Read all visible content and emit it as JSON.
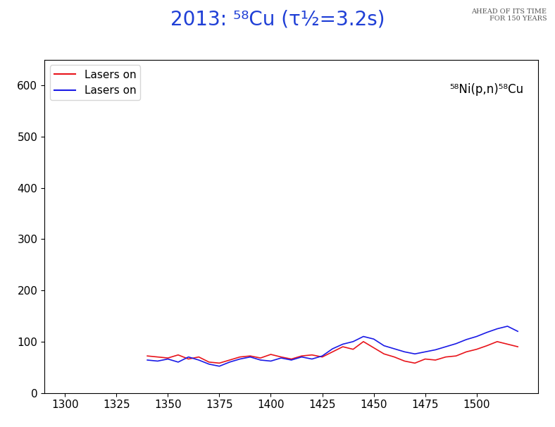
{
  "chart_data": {
    "type": "line",
    "title": "2013: ⁵⁸Cu (τ½=3.2s)",
    "banner": [
      "AHEAD OF ITS TIME",
      "FOR 150 YEARS"
    ],
    "annotations": [
      "⁵⁸Ni(p,n)⁵⁸Cu"
    ],
    "x": [
      1340,
      1345,
      1350,
      1355,
      1360,
      1365,
      1370,
      1375,
      1380,
      1385,
      1390,
      1395,
      1400,
      1405,
      1410,
      1415,
      1420,
      1425,
      1430,
      1435,
      1440,
      1445,
      1450,
      1455,
      1460,
      1465,
      1470,
      1475,
      1480,
      1485,
      1490,
      1495,
      1500,
      1505,
      1510,
      1515,
      1520
    ],
    "series": [
      {
        "name": "Lasers on",
        "color": "#e8141b",
        "line_style": "solid",
        "values": [
          72,
          70,
          68,
          74,
          66,
          70,
          60,
          58,
          64,
          70,
          72,
          68,
          75,
          70,
          66,
          72,
          74,
          70,
          80,
          90,
          85,
          100,
          88,
          76,
          70,
          62,
          58,
          66,
          64,
          70,
          72,
          80,
          85,
          92,
          100,
          95,
          90
        ]
      },
      {
        "name": "Lasers on",
        "color": "#1a1ae6",
        "line_style": "solid",
        "values": [
          64,
          62,
          66,
          60,
          70,
          64,
          56,
          52,
          60,
          66,
          70,
          64,
          62,
          68,
          64,
          70,
          66,
          72,
          86,
          95,
          100,
          110,
          105,
          92,
          86,
          80,
          76,
          80,
          84,
          90,
          96,
          104,
          110,
          118,
          125,
          130,
          120
        ]
      }
    ],
    "xlim": [
      1290,
      1530
    ],
    "ylim": [
      0,
      650
    ],
    "xticks": [
      1300,
      1325,
      1350,
      1375,
      1400,
      1425,
      1450,
      1475,
      1500
    ],
    "yticks": [
      0,
      100,
      200,
      300,
      400,
      500,
      600
    ],
    "legend": "upper left",
    "grid": false
  }
}
